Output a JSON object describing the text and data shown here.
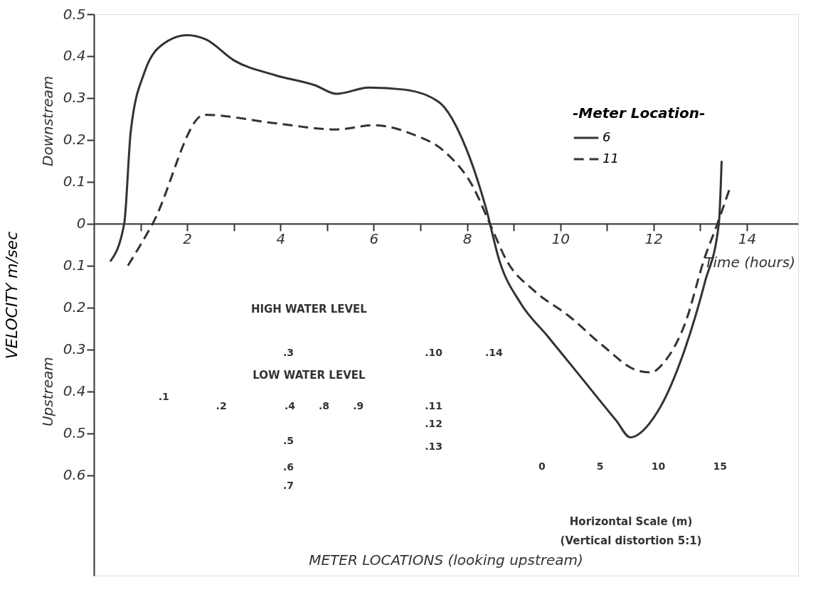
{
  "chart_data": {
    "type": "line",
    "xlabel": "Time (hours)",
    "ylabel": "VELOCITY m/sec",
    "legend_title": "-Meter Location-",
    "xlim": [
      0,
      15.1
    ],
    "ylim": [
      -0.84,
      0.5
    ],
    "xticks": [
      {
        "value": 1,
        "label": null
      },
      2,
      {
        "value": 3,
        "label": null
      },
      4,
      {
        "value": 5,
        "label": null
      },
      6,
      {
        "value": 7,
        "label": null
      },
      8,
      {
        "value": 9,
        "label": null
      },
      10,
      {
        "value": 11,
        "label": null
      },
      12,
      {
        "value": 13,
        "label": null
      },
      14
    ],
    "yticks": [
      0.5,
      0.4,
      0.3,
      0.2,
      0.1,
      0,
      {
        "value": -0.1,
        "label": "0.1"
      },
      {
        "value": -0.2,
        "label": "0.2"
      },
      {
        "value": -0.3,
        "label": "0.3"
      },
      {
        "value": -0.4,
        "label": "0.4"
      },
      {
        "value": -0.5,
        "label": "0.5"
      },
      {
        "value": -0.6,
        "label": "0.6"
      }
    ],
    "grid": false,
    "legend": "top right",
    "marker": "none",
    "series": [
      {
        "name": "6",
        "color": "#333333",
        "line_style": "solid",
        "x": [
          0.35,
          0.65,
          0.79,
          1.08,
          1.5,
          2.0,
          2.4,
          3.0,
          3.87,
          4.75,
          5.2,
          5.9,
          6.66,
          7.4,
          7.98,
          8.4,
          8.7,
          9.15,
          9.74,
          10.47,
          11.2,
          11.5,
          12.08,
          12.67,
          13.1,
          13.4,
          13.46
        ],
        "values": [
          -0.09,
          0.0,
          0.22,
          0.36,
          0.43,
          0.45,
          0.44,
          0.39,
          0.355,
          0.33,
          0.31,
          0.325,
          0.32,
          0.29,
          0.18,
          0.04,
          -0.09,
          -0.19,
          -0.27,
          -0.37,
          -0.47,
          -0.51,
          -0.45,
          -0.3,
          -0.14,
          0.0,
          0.15
        ]
      },
      {
        "name": "11",
        "color": "#333333",
        "line_style": "dashed",
        "x": [
          0.73,
          1.26,
          2.37,
          3.87,
          5.19,
          6.0,
          6.8,
          7.54,
          8.12,
          8.49,
          8.86,
          9.44,
          10.18,
          10.9,
          11.64,
          11.94,
          12.23,
          12.67,
          13.1,
          13.37,
          13.62
        ],
        "values": [
          -0.1,
          0.0,
          0.26,
          0.24,
          0.225,
          0.235,
          0.215,
          0.17,
          0.09,
          0.0,
          -0.09,
          -0.16,
          -0.22,
          -0.29,
          -0.35,
          -0.355,
          -0.33,
          -0.24,
          -0.08,
          0.0,
          0.08
        ]
      }
    ],
    "annotations": [
      "Downstream",
      "Upstream",
      "HIGH WATER LEVEL",
      "LOW WATER LEVEL",
      ".1",
      ".2",
      ".3",
      ".4",
      ".5",
      ".6",
      ".7",
      ".8",
      ".9",
      ".10",
      ".11",
      ".12",
      ".13",
      ".14",
      "0",
      "5",
      "10",
      "15",
      "Horizontal Scale (m)",
      "(Vertical distortion 5:1)",
      "METER LOCATIONS (looking upstream)"
    ]
  }
}
